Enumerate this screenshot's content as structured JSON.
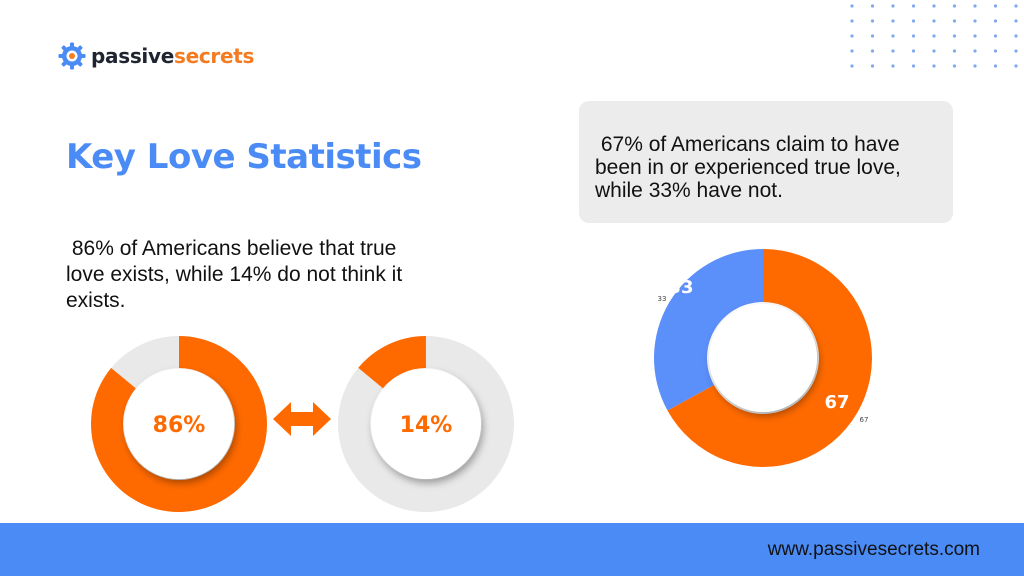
{
  "brand": {
    "name_part1": "passive",
    "name_part2": "secrets"
  },
  "title": "Key Love Statistics",
  "left_text": " 86% of Americans believe that true love exists, while 14% do not think it exists.",
  "callout_text": " 67% of Americans claim to have been in or experienced true love, while 33% have not.",
  "footer_url": "www.passivesecrets.com",
  "colors": {
    "orange": "#ff6a00",
    "blue": "#4a8bf5",
    "gray": "#e9e9e9"
  },
  "chart_data": [
    {
      "type": "pie",
      "title": "",
      "center_label": "86%",
      "slices": [
        {
          "label": "",
          "value": 86,
          "color": "#ff6a00"
        },
        {
          "label": "",
          "value": 14,
          "color": "#e9e9e9"
        }
      ]
    },
    {
      "type": "pie",
      "title": "",
      "center_label": "14%",
      "slices": [
        {
          "label": "",
          "value": 14,
          "color": "#ff6a00"
        },
        {
          "label": "",
          "value": 86,
          "color": "#e9e9e9"
        }
      ]
    },
    {
      "type": "pie",
      "title": "",
      "slices": [
        {
          "label": "67",
          "value": 67,
          "color": "#ff6a00",
          "outer_label": "67"
        },
        {
          "label": "33",
          "value": 33,
          "color": "#5b8ff9",
          "outer_label": "33"
        }
      ]
    }
  ]
}
